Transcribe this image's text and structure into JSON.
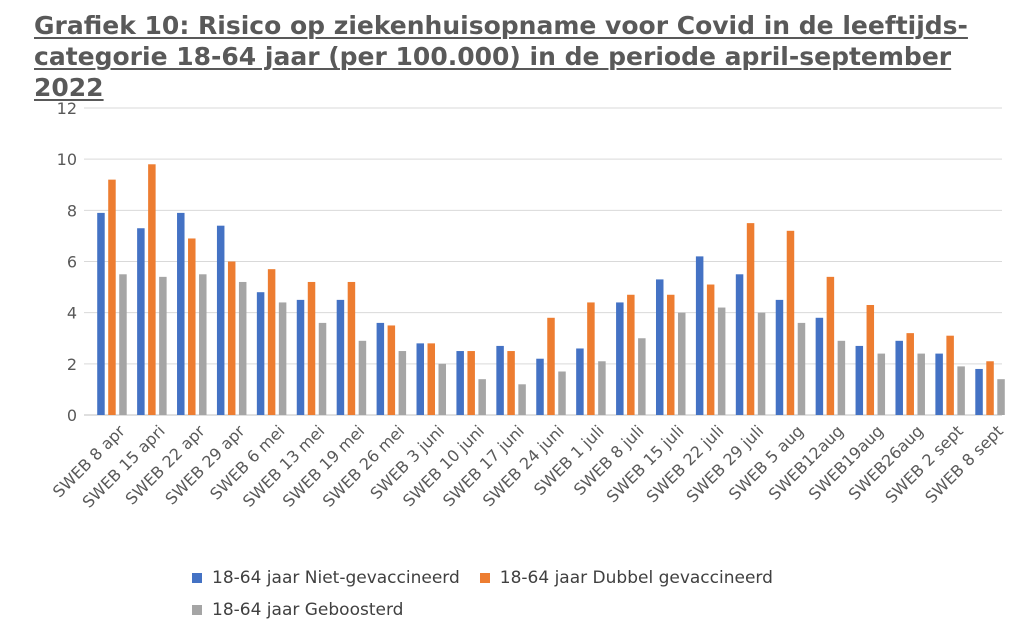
{
  "chart_data": {
    "type": "bar",
    "title": "Grafiek 10: Risico op ziekenhuisopname voor Covid in de leeftijds-categorie 18-64 jaar (per 100.000) in de periode april-september 2022",
    "xlabel": "",
    "ylabel": "",
    "ylim": [
      0,
      12
    ],
    "yticks": [
      "0",
      "2",
      "4",
      "6",
      "8",
      "10",
      "12"
    ],
    "grid": true,
    "legend_position": "bottom",
    "categories": [
      "SWEB 8 apr",
      "SWEB 15 apri",
      "SWEB 22 apr",
      "SWEB 29 apr",
      "SWEB 6 mei",
      "SWEB 13 mei",
      "SWEB 19 mei",
      "SWEB 26 mei",
      "SWEB 3 juni",
      "SWEB 10 juni",
      "SWEB 17 juni",
      "SWEB 24 juni",
      "SWEB 1 juli",
      "SWEB 8 juli",
      "SWEB 15 juli",
      "SWEB 22 juli",
      "SWEB 29 juli",
      "SWEB 5 aug",
      "SWEB12aug",
      "SWEB19aug",
      "SWEB26aug",
      "SWEB 2 sept",
      "SWEB 8 sept"
    ],
    "series": [
      {
        "name": "18-64 jaar Niet-gevaccineerd",
        "color": "#4472C4",
        "values": [
          7.9,
          7.3,
          7.9,
          7.4,
          4.8,
          4.5,
          4.5,
          3.6,
          2.8,
          2.5,
          2.7,
          2.2,
          2.6,
          4.4,
          5.3,
          6.2,
          5.5,
          4.5,
          3.8,
          2.7,
          2.9,
          2.4,
          1.8
        ]
      },
      {
        "name": "18-64 jaar Dubbel gevaccineerd",
        "color": "#ED7D31",
        "values": [
          9.2,
          9.8,
          6.9,
          6.0,
          5.7,
          5.2,
          5.2,
          3.5,
          2.8,
          2.5,
          2.5,
          3.8,
          4.4,
          4.7,
          4.7,
          5.1,
          7.5,
          7.2,
          5.4,
          4.3,
          3.2,
          3.1,
          2.1
        ]
      },
      {
        "name": "18-64 jaar Geboosterd",
        "color": "#A5A5A5",
        "values": [
          5.5,
          5.4,
          5.5,
          5.2,
          4.4,
          3.6,
          2.9,
          2.5,
          2.0,
          1.4,
          1.2,
          1.7,
          2.1,
          3.0,
          4.0,
          4.2,
          4.0,
          3.6,
          2.9,
          2.4,
          2.4,
          1.9,
          1.4
        ]
      }
    ]
  }
}
